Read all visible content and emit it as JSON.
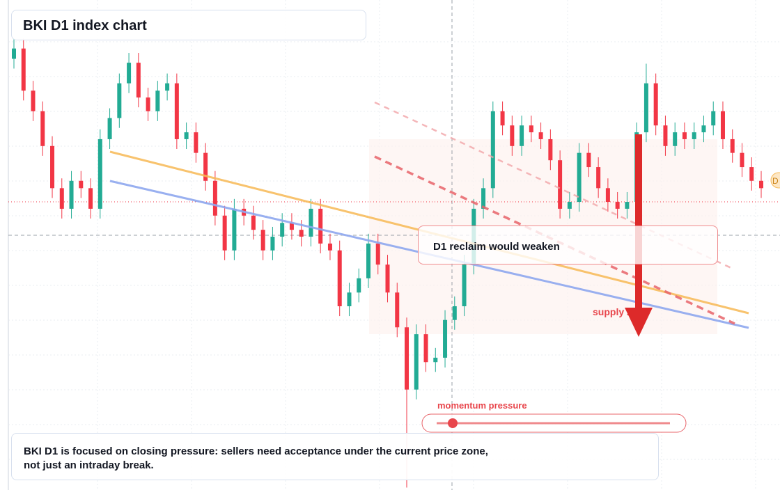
{
  "chart_data": {
    "type": "candlestick",
    "title": "BKI D1 index chart",
    "ylim": [
      0,
      100
    ],
    "open": [
      88.0,
      90.1,
      81.5,
      77.3,
      70.2,
      61.6,
      57.4,
      63.1,
      61.6,
      57.4,
      71.6,
      75.9,
      83.0,
      87.2,
      80.1,
      77.3,
      81.5,
      83.0,
      71.6,
      73.0,
      68.8,
      63.1,
      56.0,
      48.9,
      57.4,
      56.0,
      53.1,
      48.9,
      51.7,
      54.5,
      53.1,
      51.7,
      57.4,
      50.3,
      48.9,
      37.5,
      40.3,
      43.2,
      50.3,
      46.0,
      40.3,
      33.2,
      20.5,
      31.8,
      26.1,
      27.0,
      34.7,
      37.5,
      46.0,
      57.4,
      61.6,
      77.3,
      74.4,
      70.2,
      74.4,
      73.0,
      71.6,
      67.3,
      57.4,
      58.8,
      68.8,
      65.9,
      61.6,
      58.8,
      57.4,
      58.8,
      73.0,
      83.0,
      74.4,
      70.2,
      73.0,
      71.6,
      73.0,
      74.4,
      77.3,
      71.6,
      68.8,
      65.9,
      63.1
    ],
    "high": [
      92.1,
      92.1,
      83.5,
      79.3,
      72.2,
      63.6,
      65.1,
      65.1,
      63.6,
      73.6,
      77.9,
      85.0,
      89.2,
      89.2,
      82.1,
      83.5,
      85.0,
      85.0,
      75.0,
      75.0,
      70.8,
      65.1,
      58.0,
      59.4,
      59.4,
      58.0,
      55.1,
      53.7,
      56.5,
      56.5,
      55.1,
      59.4,
      59.4,
      52.3,
      50.9,
      42.3,
      45.2,
      52.3,
      52.3,
      48.0,
      42.3,
      35.2,
      33.8,
      33.8,
      29.0,
      36.7,
      39.5,
      48.0,
      59.4,
      63.6,
      79.3,
      79.3,
      76.4,
      76.4,
      76.4,
      75.0,
      73.6,
      69.3,
      60.8,
      70.8,
      70.8,
      67.9,
      63.6,
      60.8,
      60.8,
      75.0,
      87.0,
      85.0,
      76.4,
      75.0,
      75.0,
      75.0,
      76.4,
      79.3,
      79.3,
      73.6,
      70.8,
      67.9,
      65.1
    ],
    "low": [
      86.0,
      79.5,
      75.3,
      68.2,
      59.6,
      55.4,
      55.4,
      59.6,
      55.4,
      55.4,
      69.6,
      73.9,
      81.0,
      78.1,
      75.3,
      75.3,
      79.5,
      69.6,
      69.6,
      66.8,
      61.1,
      54.0,
      46.9,
      46.9,
      54.0,
      51.1,
      46.9,
      46.9,
      49.7,
      51.1,
      49.7,
      49.7,
      48.3,
      46.9,
      35.5,
      35.5,
      38.3,
      41.2,
      44.0,
      38.3,
      31.2,
      0.5,
      18.5,
      24.1,
      24.1,
      25.0,
      32.7,
      35.5,
      44.0,
      55.4,
      59.6,
      72.4,
      68.2,
      68.2,
      71.0,
      69.6,
      65.3,
      55.4,
      55.4,
      56.8,
      63.9,
      59.6,
      56.8,
      55.4,
      55.4,
      56.8,
      71.0,
      72.4,
      68.2,
      68.2,
      69.6,
      69.6,
      71.0,
      72.4,
      69.6,
      66.8,
      63.9,
      61.1,
      59.6
    ],
    "close": [
      90.1,
      81.5,
      77.3,
      70.2,
      61.6,
      57.4,
      63.1,
      61.6,
      57.4,
      71.6,
      75.9,
      83.0,
      87.2,
      80.1,
      77.3,
      81.5,
      83.0,
      71.6,
      73.0,
      68.8,
      63.1,
      56.0,
      48.9,
      57.4,
      56.0,
      53.1,
      48.9,
      51.7,
      54.5,
      53.1,
      51.7,
      57.4,
      50.3,
      48.9,
      37.5,
      40.3,
      43.2,
      50.3,
      46.0,
      40.3,
      33.2,
      20.5,
      31.8,
      26.1,
      27.0,
      34.7,
      37.5,
      46.0,
      57.4,
      61.6,
      77.3,
      74.4,
      70.2,
      74.4,
      73.0,
      71.6,
      67.3,
      57.4,
      58.8,
      68.8,
      65.9,
      61.6,
      58.8,
      57.4,
      58.8,
      73.0,
      83.0,
      74.4,
      70.2,
      73.0,
      71.6,
      73.0,
      74.4,
      77.3,
      71.6,
      68.8,
      65.9,
      63.1,
      61.6
    ],
    "up_color": "#22ab94",
    "down_color": "#f23645",
    "annotations": {
      "note": "D1 reclaim would weaken",
      "zone": "supply zone",
      "momentum": "momentum pressure",
      "price_tag": "D",
      "caption": [
        "BKI D1 is focused on closing pressure: sellers need acceptance under the current price zone,",
        "not just an intraday break."
      ]
    }
  }
}
